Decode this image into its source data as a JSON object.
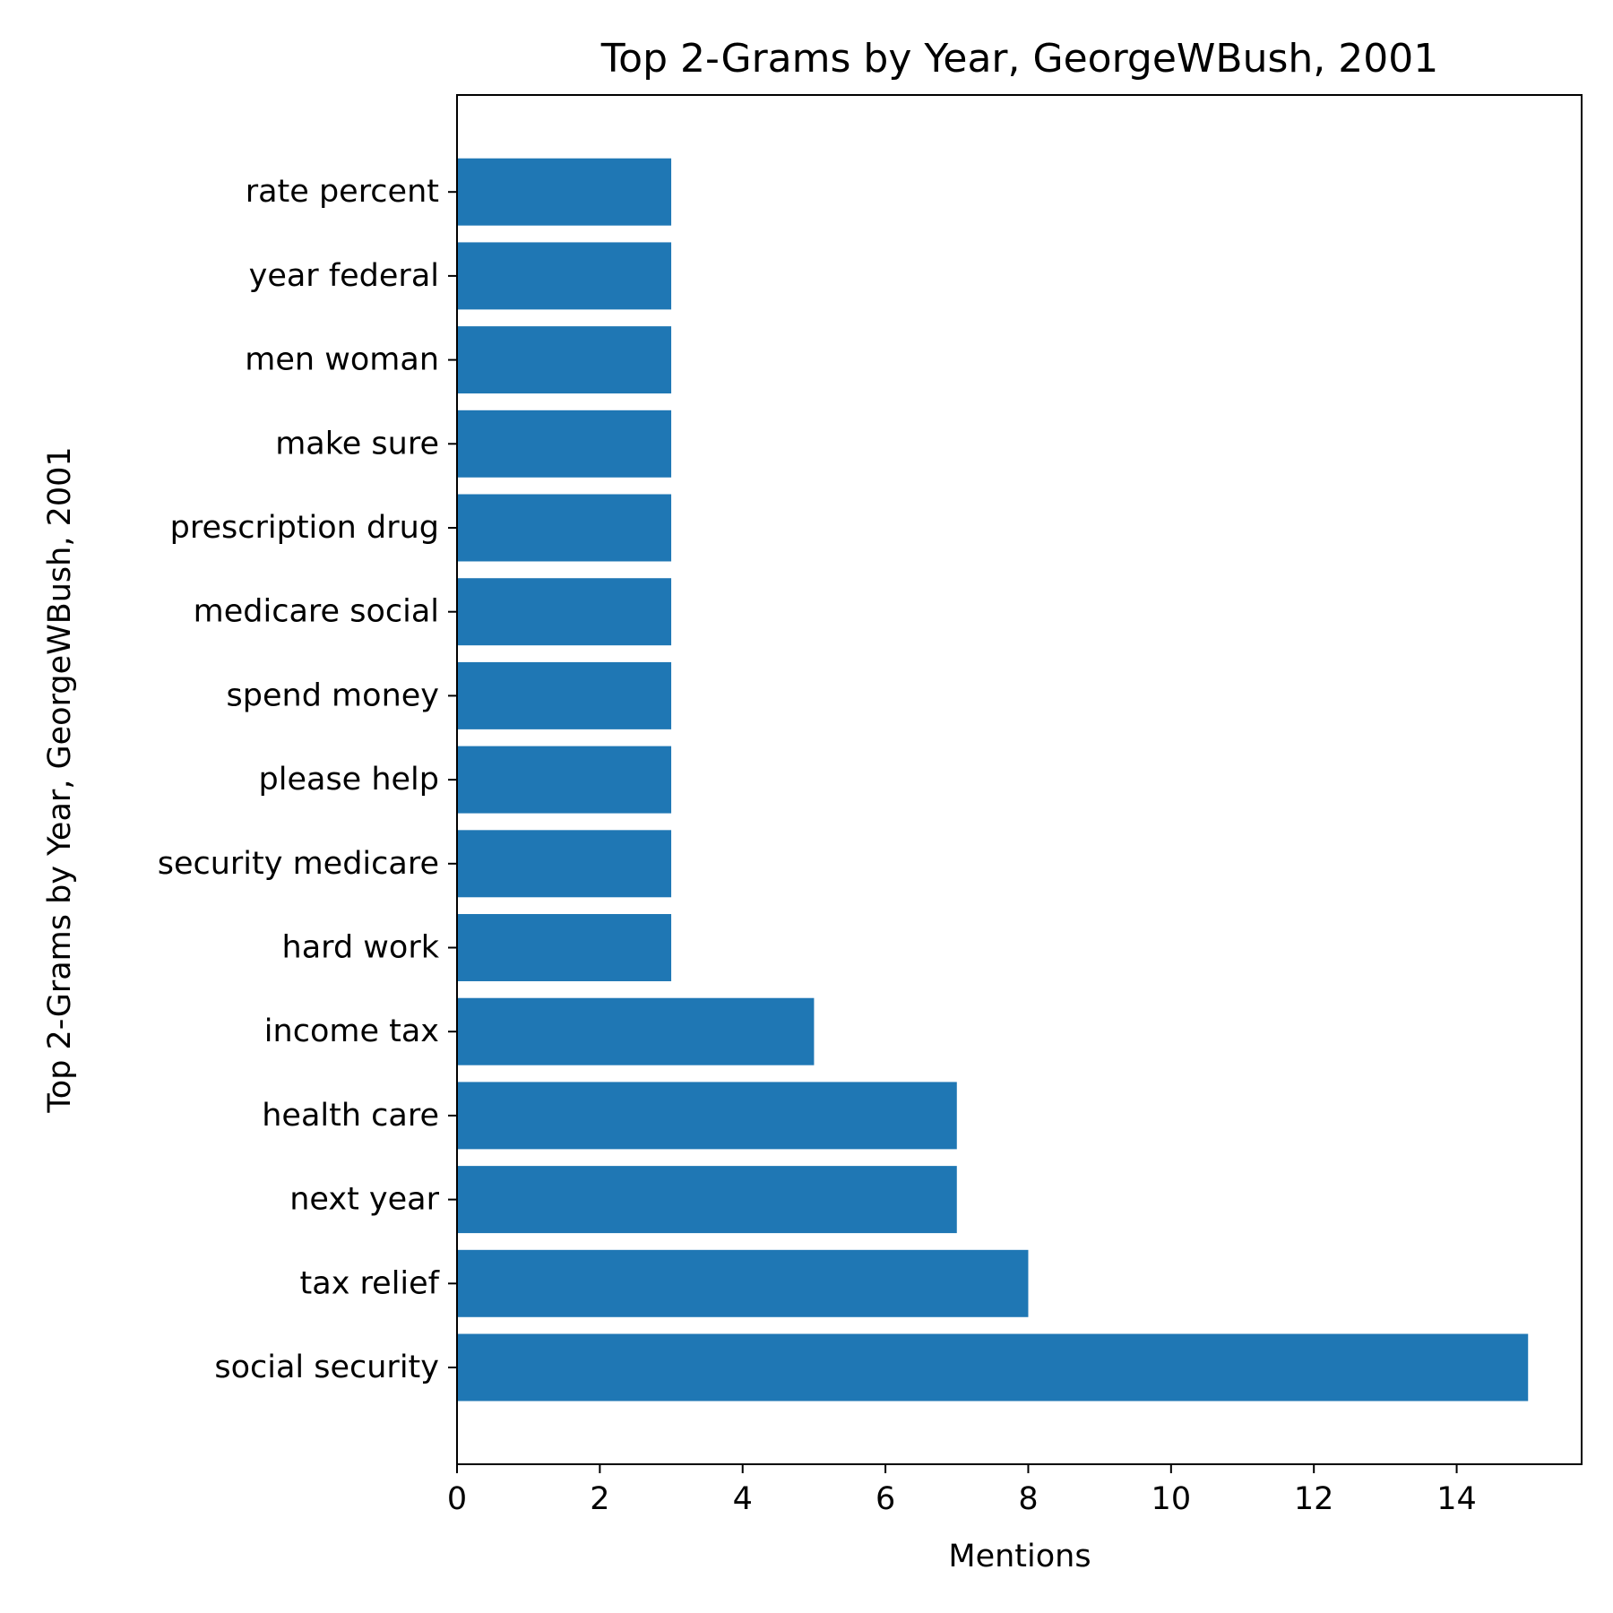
{
  "chart_data": {
    "type": "bar",
    "orientation": "horizontal",
    "title": "Top 2-Grams by Year, GeorgeWBush, 2001",
    "xlabel": "Mentions",
    "ylabel": "Top 2-Grams by Year, GeorgeWBush, 2001",
    "categories": [
      "social security",
      "tax relief",
      "next year",
      "health care",
      "income tax",
      "hard work",
      "security medicare",
      "please help",
      "spend money",
      "medicare social",
      "prescription drug",
      "make sure",
      "men woman",
      "year federal",
      "rate percent"
    ],
    "values": [
      15,
      8,
      7,
      7,
      5,
      3,
      3,
      3,
      3,
      3,
      3,
      3,
      3,
      3,
      3
    ],
    "xlim": [
      0,
      15.75
    ],
    "xticks": [
      0,
      2,
      4,
      6,
      8,
      10,
      12,
      14
    ],
    "bar_color": "#1f77b4",
    "grid": false,
    "legend": "none"
  }
}
